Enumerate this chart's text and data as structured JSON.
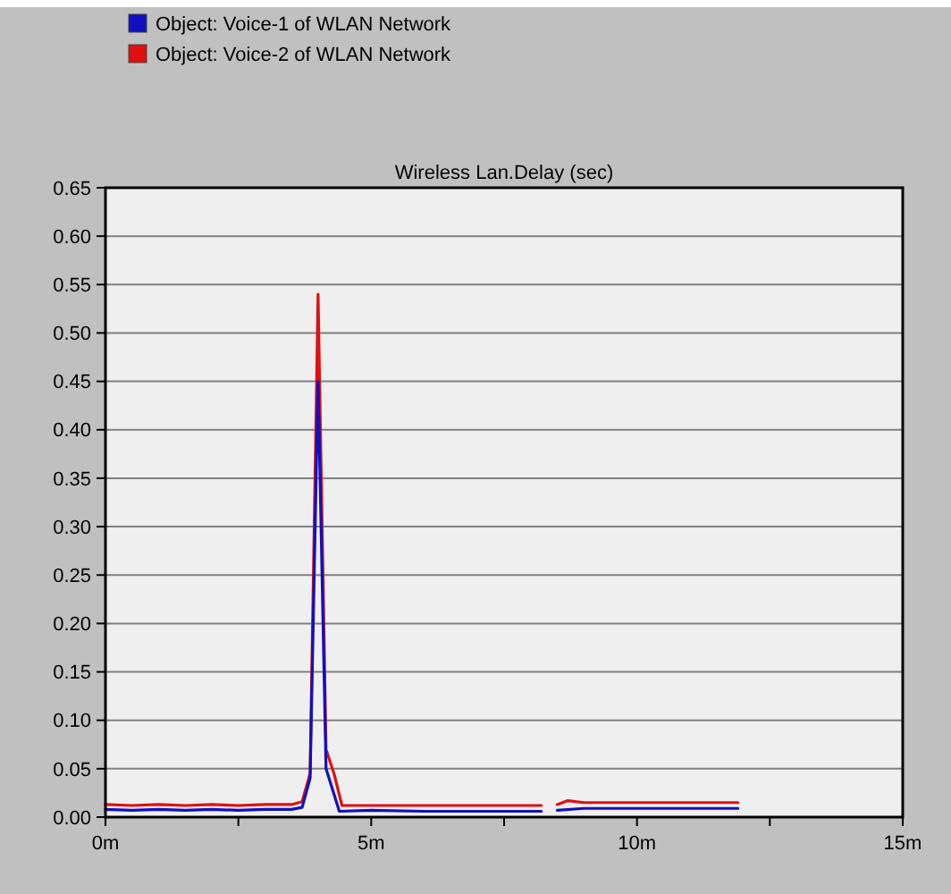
{
  "chart_data": {
    "type": "line",
    "title": "Wireless Lan.Delay (sec)",
    "xlim": [
      0,
      15
    ],
    "xticks": [
      {
        "value": 0,
        "label": "0m"
      },
      {
        "value": 2.5,
        "label": null
      },
      {
        "value": 5,
        "label": "5m"
      },
      {
        "value": 7.5,
        "label": null
      },
      {
        "value": 10,
        "label": "10m"
      },
      {
        "value": 12.5,
        "label": null
      },
      {
        "value": 15,
        "label": "15m"
      }
    ],
    "ylim": [
      0,
      0.65
    ],
    "yticks": [
      {
        "value": 0,
        "label": "0.00"
      },
      {
        "value": 0.05,
        "label": "0.05"
      },
      {
        "value": 0.1,
        "label": "0.10"
      },
      {
        "value": 0.15,
        "label": "0.15"
      },
      {
        "value": 0.2,
        "label": "0.20"
      },
      {
        "value": 0.25,
        "label": "0.25"
      },
      {
        "value": 0.3,
        "label": "0.30"
      },
      {
        "value": 0.35,
        "label": "0.35"
      },
      {
        "value": 0.4,
        "label": "0.40"
      },
      {
        "value": 0.45,
        "label": "0.45"
      },
      {
        "value": 0.5,
        "label": "0.50"
      },
      {
        "value": 0.55,
        "label": "0.55"
      },
      {
        "value": 0.6,
        "label": "0.60"
      },
      {
        "value": 0.65,
        "label": "0.65"
      }
    ],
    "grid": "y",
    "legend": "top left",
    "marker": "none",
    "line_style": "solid",
    "series": [
      {
        "name": "Object: Voice-2 of WLAN Network",
        "color": "#e01010",
        "x": [
          0,
          0.5,
          1,
          1.5,
          2,
          2.5,
          3,
          3.5,
          3.7,
          3.85,
          4.0,
          4.15,
          4.3,
          4.45,
          5,
          6,
          7,
          8.2,
          8.35,
          8.5,
          8.7,
          9,
          10,
          11,
          11.9
        ],
        "values": [
          0.013,
          0.012,
          0.013,
          0.012,
          0.013,
          0.012,
          0.013,
          0.013,
          0.016,
          0.045,
          0.54,
          0.07,
          0.045,
          0.012,
          0.012,
          0.012,
          0.012,
          0.012,
          null,
          0.013,
          0.017,
          0.015,
          0.015,
          0.015,
          0.015
        ]
      },
      {
        "name": "Object: Voice-1 of WLAN Network",
        "color": "#1010c0",
        "x": [
          0,
          0.5,
          1,
          1.5,
          2,
          2.5,
          3,
          3.5,
          3.7,
          3.85,
          4.0,
          4.15,
          4.4,
          5,
          6,
          7,
          8.2,
          8.35,
          8.5,
          9,
          10,
          11,
          11.9
        ],
        "values": [
          0.008,
          0.007,
          0.008,
          0.007,
          0.008,
          0.007,
          0.008,
          0.008,
          0.01,
          0.04,
          0.45,
          0.05,
          0.006,
          0.007,
          0.006,
          0.006,
          0.006,
          null,
          0.007,
          0.009,
          0.009,
          0.009,
          0.009
        ]
      }
    ]
  }
}
